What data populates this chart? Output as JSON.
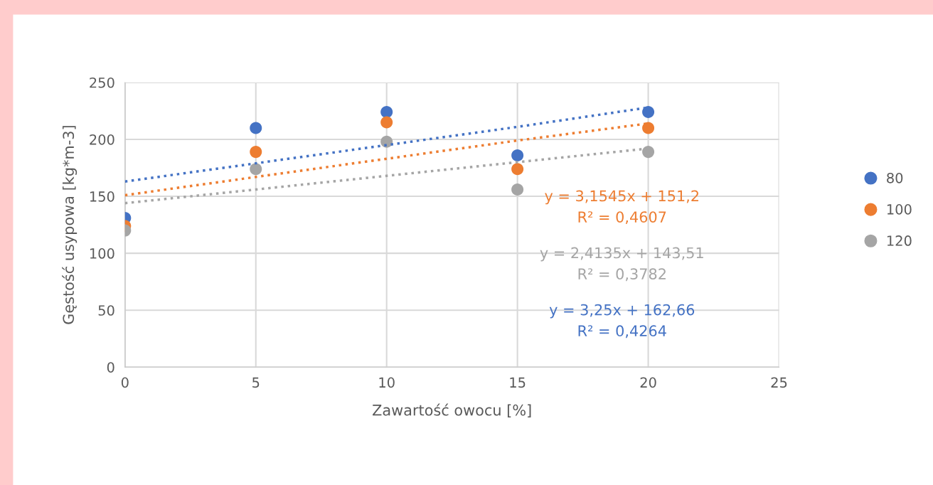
{
  "chart_data": {
    "type": "scatter",
    "xlabel": "Zawartość owocu [%]",
    "ylabel": "Gęstość usypowa [kg*m-3]",
    "x": [
      0,
      5,
      10,
      15,
      20
    ],
    "series": [
      {
        "name": "80",
        "color": "#4472c4",
        "values": [
          131,
          210,
          224,
          186,
          224
        ]
      },
      {
        "name": "100",
        "color": "#ed7d31",
        "values": [
          124,
          189,
          215,
          174,
          210
        ]
      },
      {
        "name": "120",
        "color": "#a5a5a5",
        "values": [
          120,
          174,
          198,
          156,
          189
        ]
      },
      {
        "type": "line",
        "line_style": "dotted",
        "marker": "none",
        "color": "#ed7d31",
        "values": [
          151,
          167,
          183,
          199,
          214
        ]
      },
      {
        "type": "line",
        "line_style": "dotted",
        "marker": "none",
        "color": "#a5a5a5",
        "values": [
          144,
          156,
          168,
          180,
          192
        ]
      },
      {
        "type": "line",
        "line_style": "dotted",
        "marker": "none",
        "color": "#4472c4",
        "values": [
          163,
          179,
          195,
          211,
          228
        ]
      }
    ],
    "annotations": [
      "y = 3,1545x + 151,2\nR² = 0,4607",
      "y = 2,4135x + 143,51\nR² = 0,3782",
      "y = 3,25x + 162,66\nR² = 0,4264"
    ],
    "xlim": [
      0,
      25
    ],
    "xticks": [
      0,
      5,
      10,
      15,
      20,
      25
    ],
    "ylim": [
      0,
      250
    ],
    "yticks": [
      0,
      50,
      100,
      150,
      200,
      250
    ],
    "grid": true,
    "legend": "right",
    "marker": "circle"
  }
}
